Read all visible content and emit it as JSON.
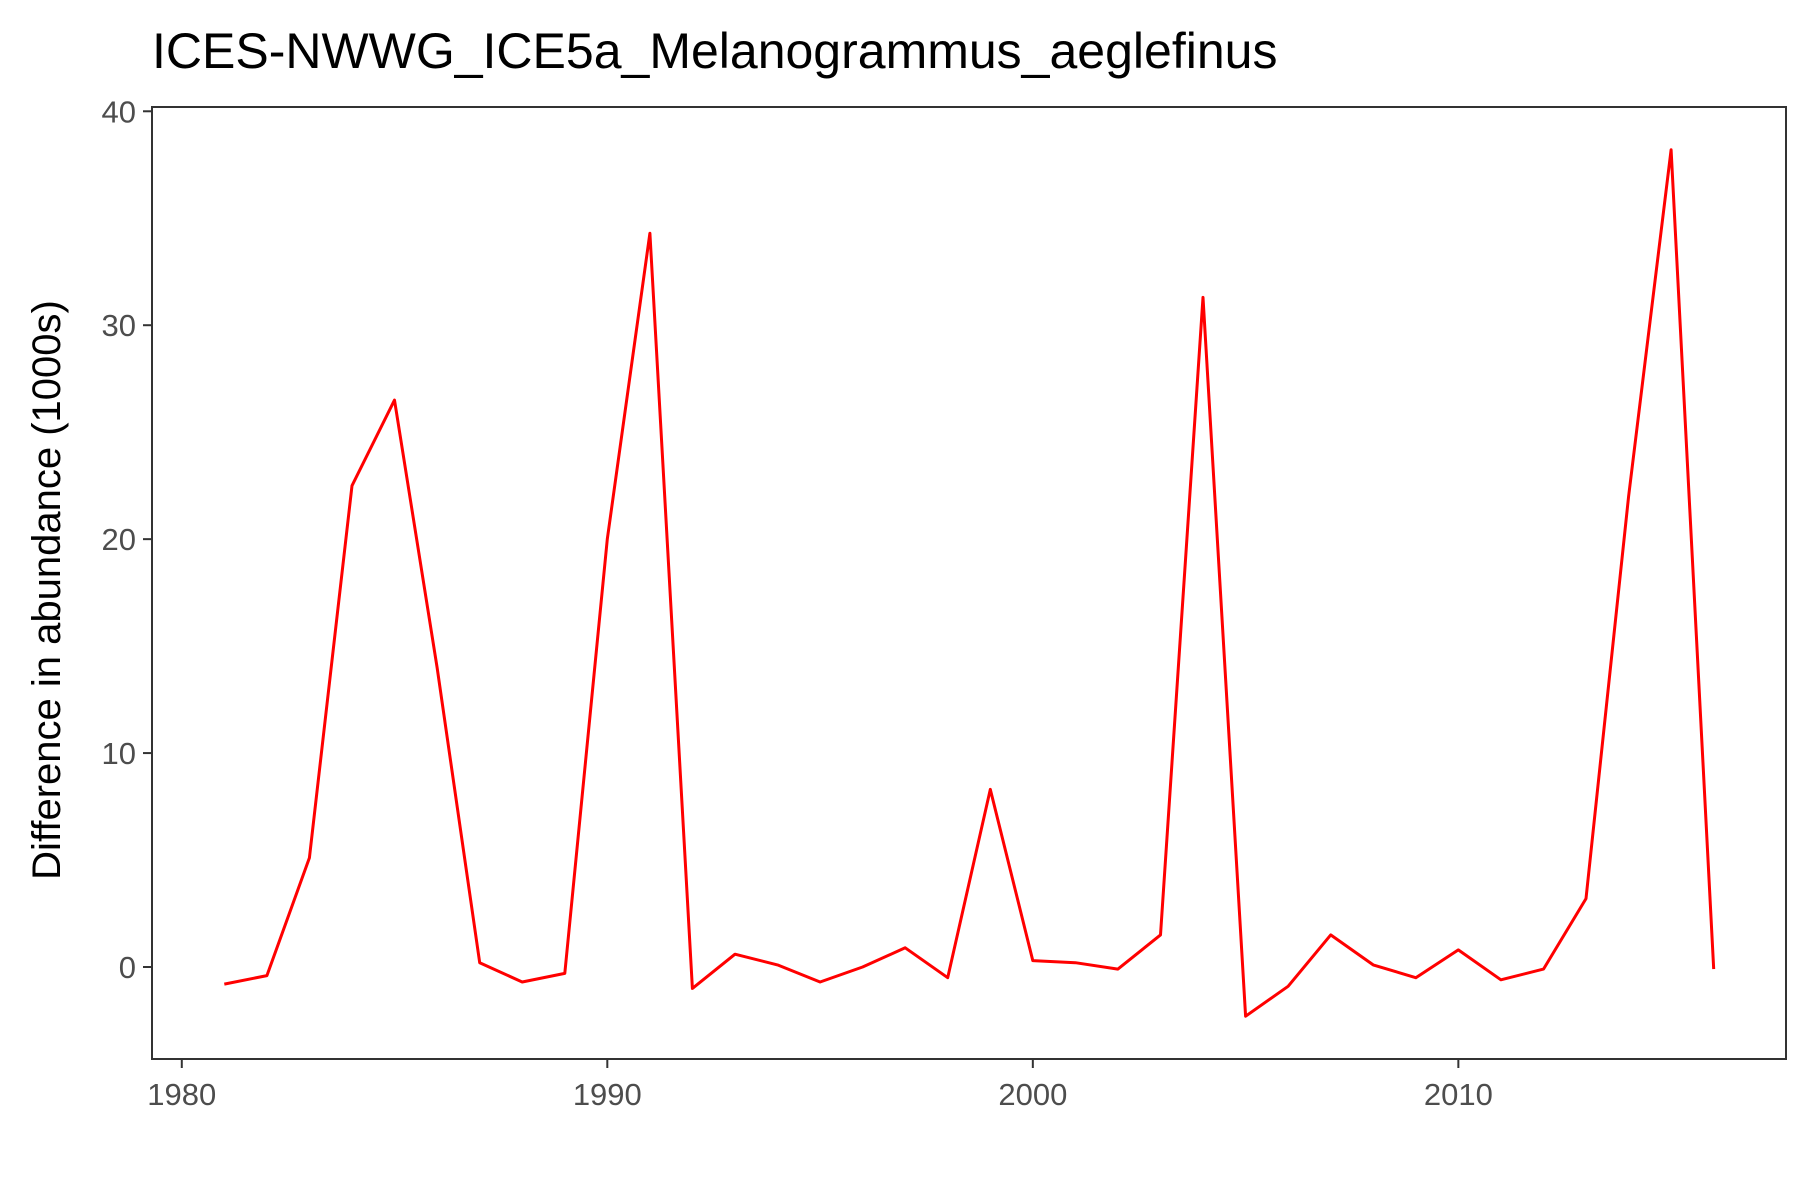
{
  "chart_data": {
    "type": "line",
    "title": "ICES-NWWG_ICE5a_Melanogrammus_aeglefinus",
    "xlabel": "",
    "ylabel": "Difference in abundance (1000s)",
    "xlim": [
      1979.3,
      2017.7
    ],
    "ylim": [
      -4.3,
      40.2
    ],
    "x_ticks": [
      1980,
      1990,
      2000,
      2010
    ],
    "y_ticks": [
      0,
      10,
      20,
      30,
      40
    ],
    "grid": false,
    "series": [
      {
        "color": "#ff0000",
        "x": [
          1981,
          1982,
          1983,
          1984,
          1985,
          1986,
          1987,
          1988,
          1989,
          1990,
          1991,
          1992,
          1993,
          1994,
          1995,
          1996,
          1997,
          1998,
          1999,
          2000,
          2001,
          2002,
          2003,
          2004,
          2005,
          2006,
          2007,
          2008,
          2009,
          2010,
          2011,
          2012,
          2013,
          2014,
          2015,
          2016
        ],
        "y": [
          -0.8,
          -0.4,
          5.1,
          22.5,
          26.5,
          14.0,
          0.2,
          -0.7,
          -0.3,
          20.0,
          34.3,
          -1.0,
          0.6,
          0.1,
          -0.7,
          0.0,
          0.9,
          -0.5,
          8.3,
          0.3,
          0.2,
          -0.1,
          1.5,
          31.3,
          -2.3,
          -0.9,
          1.5,
          0.1,
          -0.5,
          0.8,
          -0.6,
          -0.1,
          3.2,
          22.0,
          38.2,
          -0.1
        ]
      }
    ]
  }
}
